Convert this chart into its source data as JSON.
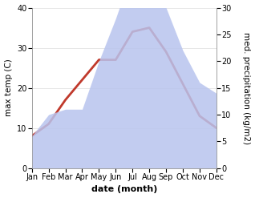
{
  "months": [
    "Jan",
    "Feb",
    "Mar",
    "Apr",
    "May",
    "Jun",
    "Jul",
    "Aug",
    "Sep",
    "Oct",
    "Nov",
    "Dec"
  ],
  "max_temp": [
    8,
    11,
    17,
    22,
    27,
    27,
    34,
    35,
    29,
    21,
    13,
    10
  ],
  "precipitation": [
    6,
    10,
    11,
    11,
    20,
    28,
    37,
    37,
    30,
    22,
    16,
    14
  ],
  "temp_color": "#c0392b",
  "precip_fill_color": "#b8c4ee",
  "temp_ylim": [
    0,
    40
  ],
  "precip_ylim": [
    0,
    30
  ],
  "xlabel": "date (month)",
  "ylabel_left": "max temp (C)",
  "ylabel_right": "med. precipitation (kg/m2)",
  "background_color": "#ffffff",
  "temp_linewidth": 2.0,
  "xlabel_fontsize": 8,
  "ylabel_fontsize": 7.5,
  "tick_fontsize": 7
}
